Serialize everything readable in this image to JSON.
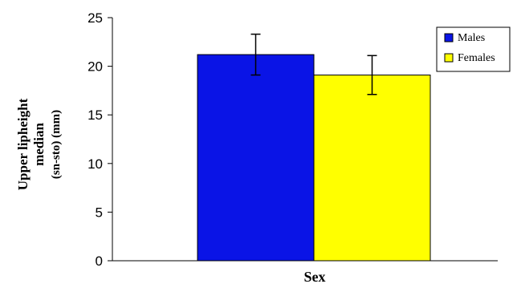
{
  "chart_data": {
    "type": "bar",
    "title": "",
    "xlabel": "Sex",
    "ylabel_lines": [
      "Upper lipheight",
      "median",
      "(sn-sto) (mm)"
    ],
    "ylim": [
      0,
      25
    ],
    "yticks": [
      0,
      5,
      10,
      15,
      20,
      25
    ],
    "grid": false,
    "legend": "top-right",
    "series": [
      {
        "name": "Males",
        "value": 21.2,
        "error": 2.1,
        "color": "#0a14e6"
      },
      {
        "name": "Females",
        "value": 19.1,
        "error": 2.0,
        "color": "#ffff00"
      }
    ]
  }
}
